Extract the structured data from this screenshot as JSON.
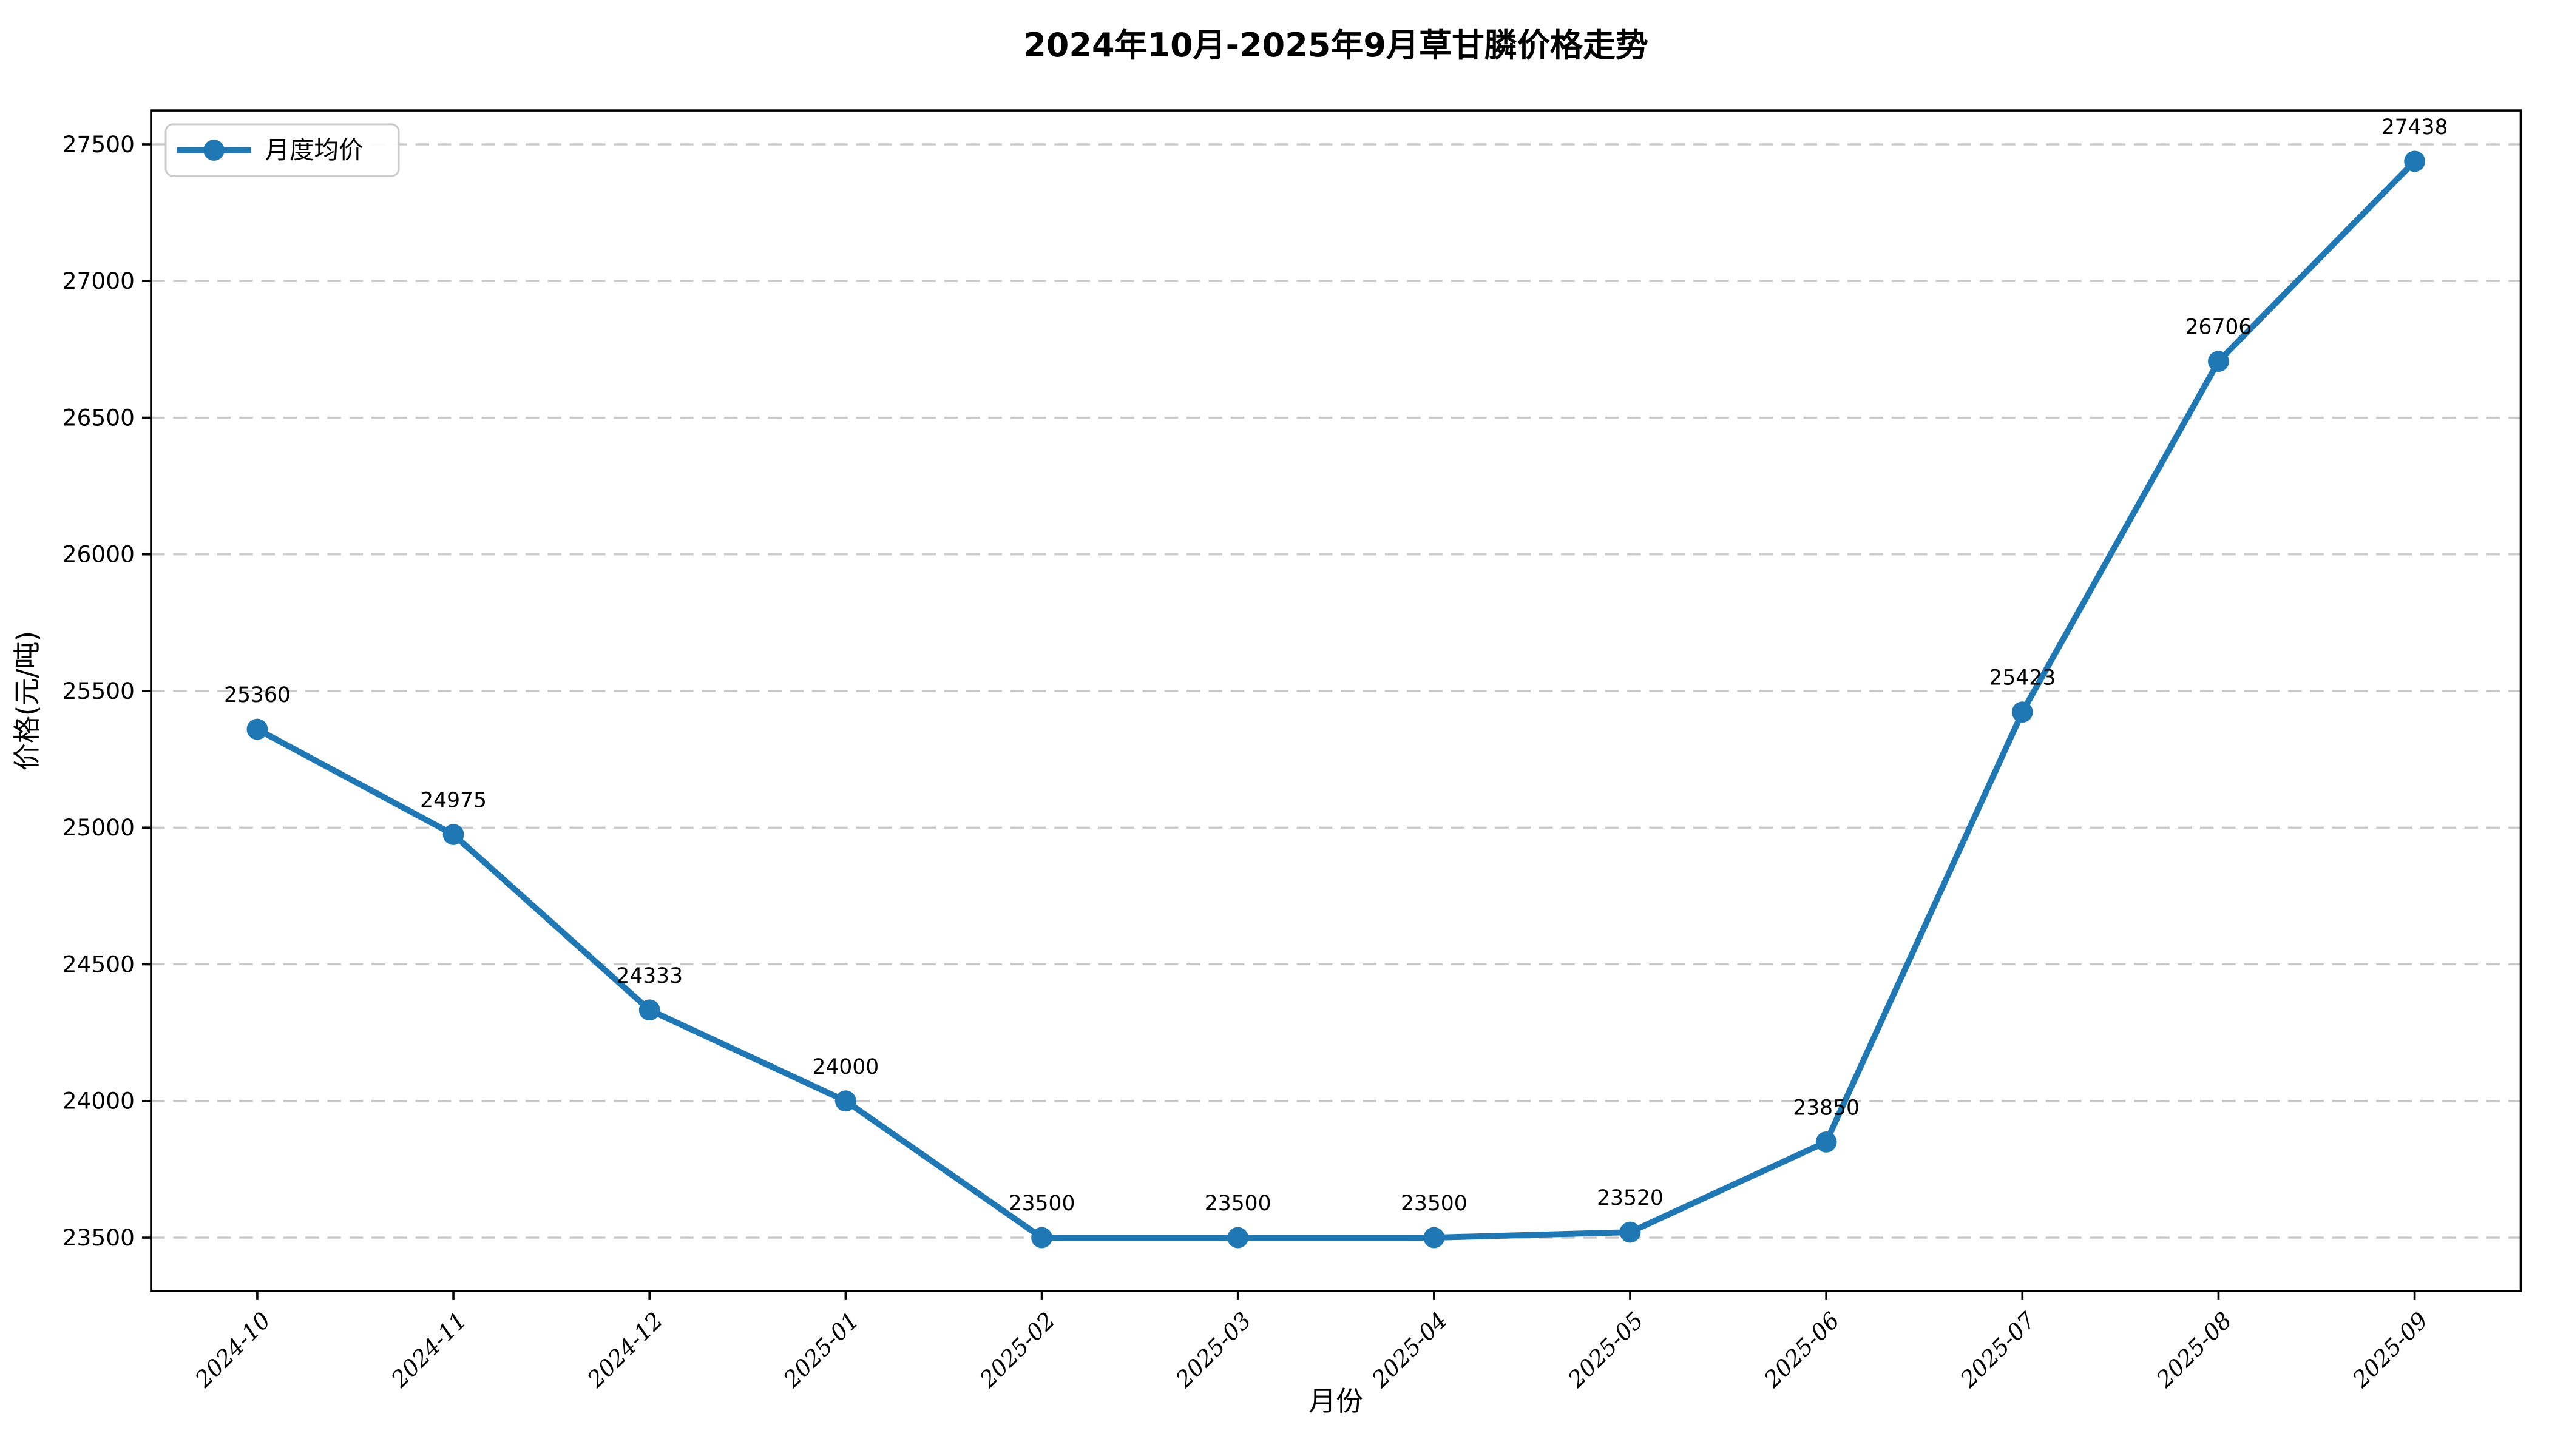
{
  "chart_data": {
    "type": "line",
    "title": "2024年10月-2025年9月草甘膦价格走势",
    "xlabel": "月份",
    "ylabel": "价格(元/吨)",
    "categories": [
      "2024-10",
      "2024-11",
      "2024-12",
      "2025-01",
      "2025-02",
      "2025-03",
      "2025-04",
      "2025-05",
      "2025-06",
      "2025-07",
      "2025-08",
      "2025-09"
    ],
    "series": [
      {
        "name": "月度均价",
        "values": [
          25360,
          24975,
          24333,
          24000,
          23500,
          23500,
          23500,
          23520,
          23850,
          25423,
          26706,
          27438
        ]
      }
    ],
    "point_labels_shown": true,
    "yticks": [
      23500,
      24000,
      24500,
      25000,
      25500,
      26000,
      26500,
      27000,
      27500
    ],
    "ylim": [
      23305,
      27624
    ],
    "grid": "horizontal-dashed",
    "legend_position": "upper-left",
    "marker": "circle",
    "colors": {
      "line": "#1f77b4",
      "grid": "#c8c8c8",
      "spine": "#000000",
      "legend_edge": "#cccccc",
      "text": "#000000",
      "background": "#ffffff"
    }
  }
}
